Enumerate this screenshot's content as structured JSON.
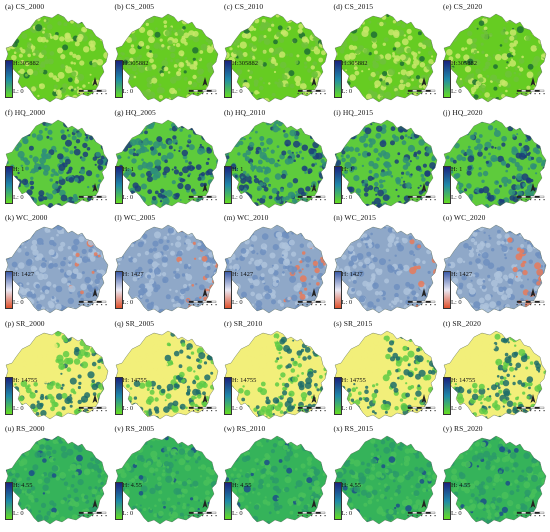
{
  "rows": [
    {
      "id": "CS",
      "palette": {
        "low": "#66cc22",
        "mid": "#c8e86a",
        "high": "#6fc23a",
        "speck": "#1f6f34"
      },
      "legend": {
        "high": "H:305882",
        "low": "L: 0",
        "grad_top": "#1a237e",
        "grad_mid": "#1e88a8",
        "grad_bot": "#66dd22"
      },
      "panels": [
        {
          "title": "(a) CS_2000"
        },
        {
          "title": "(b) CS_2005"
        },
        {
          "title": "(c) CS_2010"
        },
        {
          "title": "(d) CS_2015"
        },
        {
          "title": "(e) CS_2020"
        }
      ]
    },
    {
      "id": "HQ",
      "palette": {
        "low": "#5ecb3c",
        "mid": "#2f8f79",
        "high": "#1b3f7a",
        "speck": "#d8ef8c"
      },
      "legend": {
        "high": "H: 1",
        "low": "L: 0",
        "grad_top": "#1a237e",
        "grad_mid": "#1e88a8",
        "grad_bot": "#66dd22"
      },
      "panels": [
        {
          "title": "(f) HQ_2000"
        },
        {
          "title": "(g) HQ_2005"
        },
        {
          "title": "(h) HQ_2010"
        },
        {
          "title": "(i) HQ_2015"
        },
        {
          "title": "(j) HQ_2020"
        }
      ]
    },
    {
      "id": "WC",
      "palette": {
        "low": "#8fa8c8",
        "mid": "#aec3dc",
        "high": "#6f8fbf",
        "speck": "#e87a5a"
      },
      "legend": {
        "high": "H: 1427",
        "low": "L: 0",
        "grad_top": "#3b5ba8",
        "grad_mid": "#e8e8f4",
        "grad_bot": "#e0502a"
      },
      "panels": [
        {
          "title": "(k) WC_2000"
        },
        {
          "title": "(l) WC_2005"
        },
        {
          "title": "(m) WC_2010"
        },
        {
          "title": "(n) WC_2015"
        },
        {
          "title": "(o) WC_2020"
        }
      ]
    },
    {
      "id": "SR",
      "palette": {
        "low": "#f2ef7a",
        "mid": "#5fcb46",
        "high": "#1d6d6a",
        "speck": "#1b3f7a"
      },
      "legend": {
        "high": "H: 14755",
        "low": "L: 0",
        "grad_top": "#1a237e",
        "grad_mid": "#1e88a8",
        "grad_bot": "#66dd22"
      },
      "panels": [
        {
          "title": "(p) SR_2000"
        },
        {
          "title": "(q) SR_2005"
        },
        {
          "title": "(r) SR_2010"
        },
        {
          "title": "(s) SR_2015"
        },
        {
          "title": "(t) SR_2020"
        }
      ]
    },
    {
      "id": "RS",
      "palette": {
        "low": "#35b35a",
        "mid": "#48c05a",
        "high": "#2a9a6a",
        "speck": "#1b4f8a"
      },
      "legend": {
        "high": "H: 4.55",
        "low": "L: 0",
        "grad_top": "#1a237e",
        "grad_mid": "#1e88a8",
        "grad_bot": "#66dd22"
      },
      "panels": [
        {
          "title": "(u) RS_2000"
        },
        {
          "title": "(v) RS_2005"
        },
        {
          "title": "(w) RS_2010"
        },
        {
          "title": "(x) RS_2015"
        },
        {
          "title": "(y) RS_2020"
        }
      ]
    }
  ]
}
